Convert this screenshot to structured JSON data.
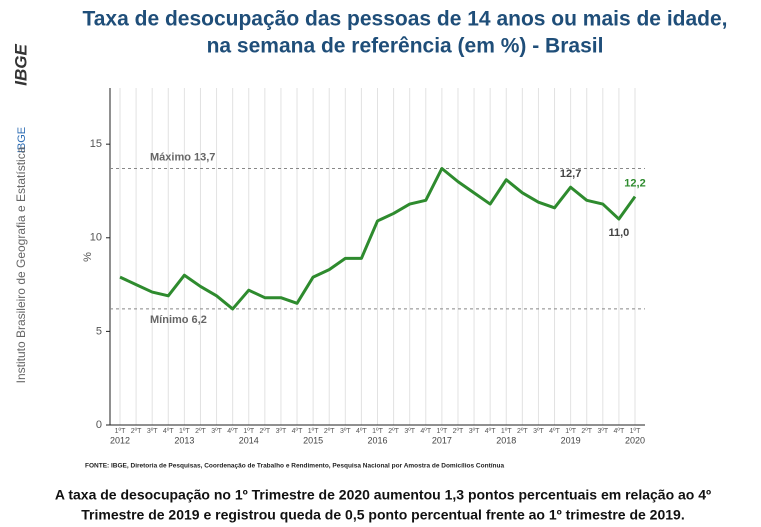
{
  "header": {
    "title_lines": [
      "Taxa de desocupação das pessoas de 14 anos ou mais de idade,",
      "na semana de referência (em %) - Brasil"
    ]
  },
  "sidebar": {
    "logo": "IBGE",
    "short": "IBGE",
    "institution": "Instituto Brasileiro de Geografia e Estatística"
  },
  "chart_data": {
    "type": "line",
    "y_label": "%",
    "categories": [
      "1ºT",
      "2ºT",
      "3ºT",
      "4ºT",
      "1ºT",
      "2ºT",
      "3ºT",
      "4ºT",
      "1ºT",
      "2ºT",
      "3ºT",
      "4ºT",
      "1ºT",
      "2ºT",
      "3ºT",
      "4ºT",
      "1ºT",
      "2ºT",
      "3ºT",
      "4ºT",
      "1ºT",
      "2ºT",
      "3ºT",
      "4ºT",
      "1ºT",
      "2ºT",
      "3ºT",
      "4ºT",
      "1ºT",
      "2ºT",
      "3ºT",
      "4ºT",
      "1ºT"
    ],
    "years": [
      "2012",
      "2013",
      "2014",
      "2015",
      "2016",
      "2017",
      "2018",
      "2019",
      "2020"
    ],
    "series": [
      {
        "name": "Taxa de desocupação",
        "color": "#2e8b2e",
        "values": [
          7.9,
          7.5,
          7.1,
          6.9,
          8.0,
          7.4,
          6.9,
          6.2,
          7.2,
          6.8,
          6.8,
          6.5,
          7.9,
          8.3,
          8.9,
          8.9,
          10.9,
          11.3,
          11.8,
          12.0,
          13.7,
          13.0,
          12.4,
          11.8,
          13.1,
          12.4,
          11.9,
          11.6,
          12.7,
          12.0,
          11.8,
          11.0,
          12.2
        ],
        "value_labels": [
          null,
          null,
          null,
          null,
          null,
          null,
          null,
          null,
          null,
          null,
          null,
          null,
          null,
          null,
          null,
          null,
          null,
          null,
          null,
          null,
          null,
          null,
          null,
          null,
          null,
          null,
          null,
          null,
          "12,7",
          null,
          null,
          "11,0",
          "12,2"
        ]
      }
    ],
    "reference_lines": [
      {
        "label": "Máximo 13,7",
        "value": 13.7
      },
      {
        "label": "Mínimo 6,2",
        "value": 6.2
      }
    ],
    "ylim": [
      0,
      18
    ],
    "yticks": [
      0,
      5,
      10,
      15
    ],
    "grid": true
  },
  "source": "FONTE: IBGE, Diretoria de Pesquisas, Coordenação de Trabalho e Rendimento, Pesquisa Nacional por Amostra de Domicílios Contínua",
  "footer": {
    "lines": [
      "A taxa de desocupação no 1º Trimestre de 2020 aumentou 1,3 pontos percentuais em relação ao 4º",
      "Trimestre de 2019 e registrou queda de 0,5 ponto percentual frente ao 1º trimestre de 2019."
    ]
  }
}
